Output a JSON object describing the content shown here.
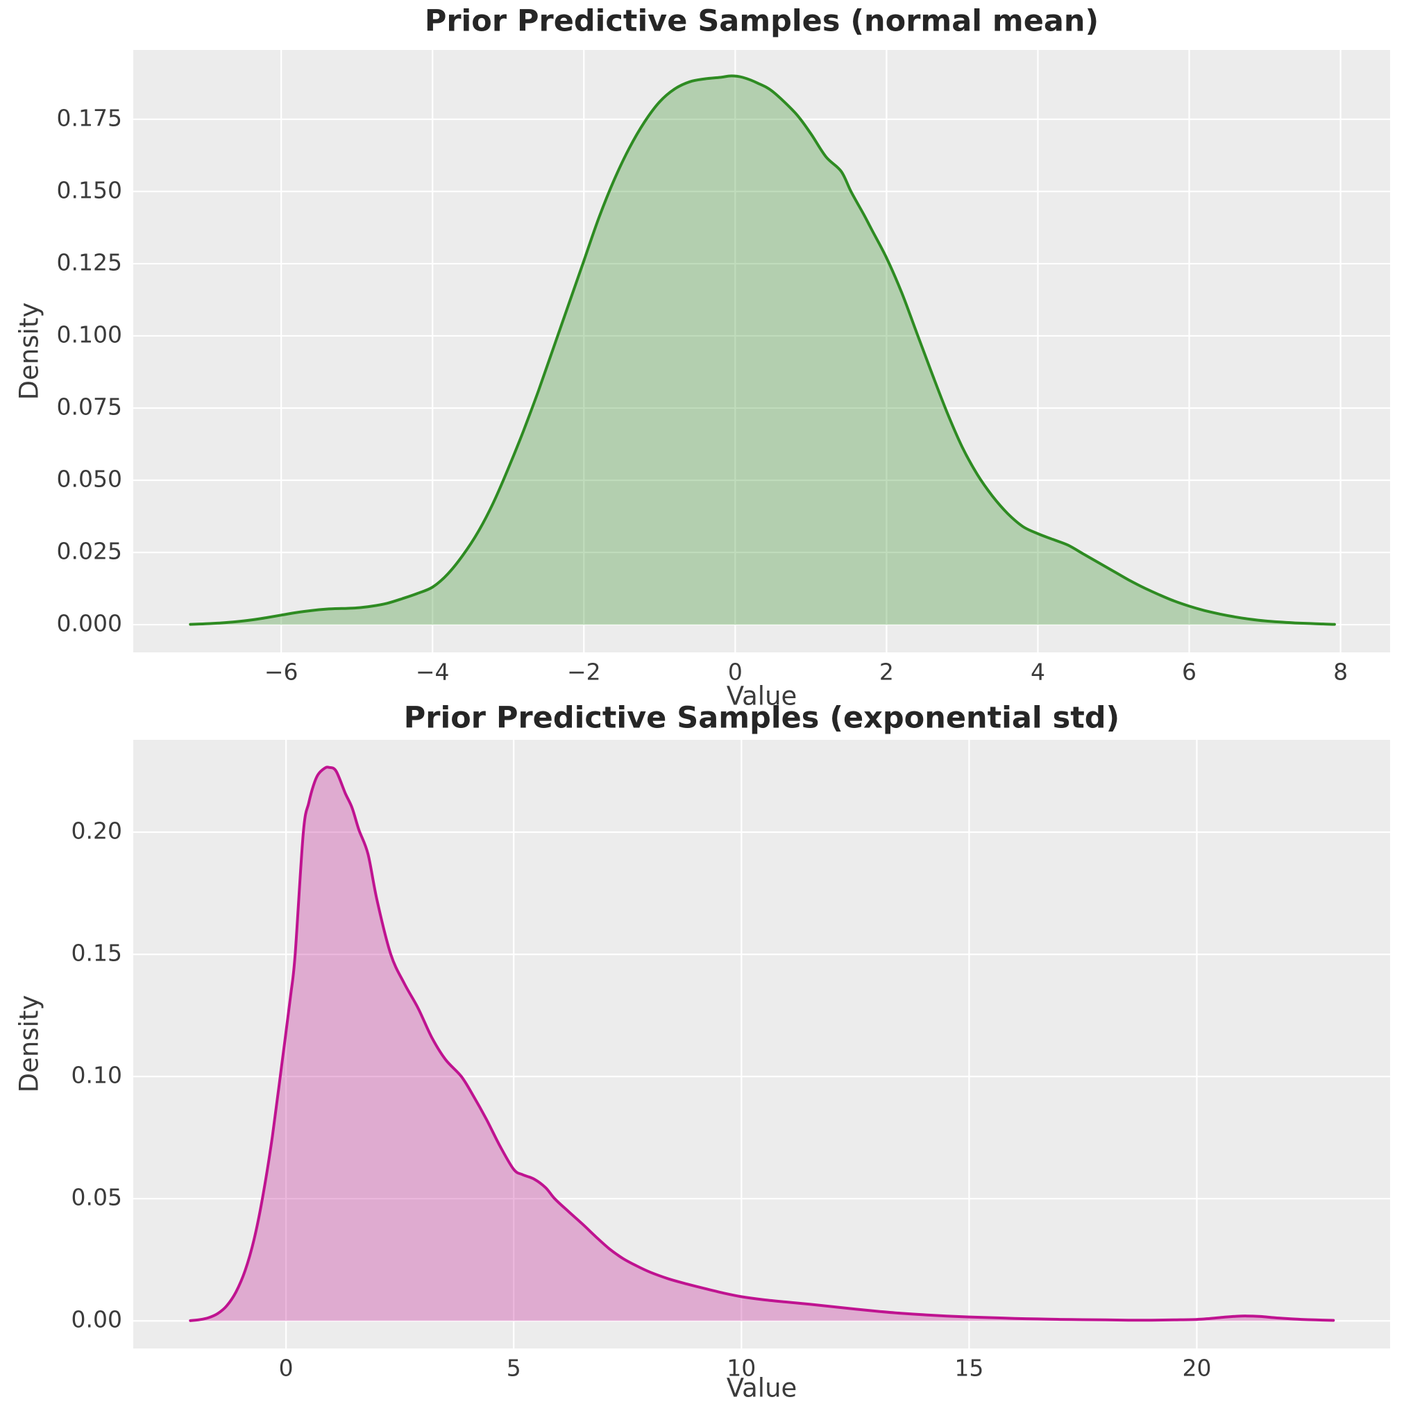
{
  "figure": {
    "background": "#ffffff",
    "plot_background": "#ececec",
    "grid_color": "#ffffff",
    "tick_color": "#3b3b3b",
    "label_color": "#3b3b3b",
    "title_color": "#262626"
  },
  "chart_data": [
    {
      "type": "area",
      "kind": "kde-density",
      "title": "Prior Predictive Samples (normal mean)",
      "xlabel": "Value",
      "ylabel": "Density",
      "legend": null,
      "grid": true,
      "line_color": "#2e8b22",
      "fill_color": "rgba(46,139,34,0.30)",
      "xlim": [
        -7.955,
        8.655
      ],
      "ylim": [
        -0.0096,
        0.199
      ],
      "x_ticks": [
        {
          "v": -6,
          "label": "−6"
        },
        {
          "v": -4,
          "label": "−4"
        },
        {
          "v": -2,
          "label": "−2"
        },
        {
          "v": 0,
          "label": "0"
        },
        {
          "v": 2,
          "label": "2"
        },
        {
          "v": 4,
          "label": "4"
        },
        {
          "v": 6,
          "label": "6"
        },
        {
          "v": 8,
          "label": "8"
        }
      ],
      "y_ticks": [
        {
          "v": 0.0,
          "label": "0.000"
        },
        {
          "v": 0.025,
          "label": "0.025"
        },
        {
          "v": 0.05,
          "label": "0.050"
        },
        {
          "v": 0.075,
          "label": "0.075"
        },
        {
          "v": 0.1,
          "label": "0.100"
        },
        {
          "v": 0.125,
          "label": "0.125"
        },
        {
          "v": 0.15,
          "label": "0.150"
        },
        {
          "v": 0.175,
          "label": "0.175"
        }
      ],
      "points": [
        [
          -7.2,
          0.0001
        ],
        [
          -7.0,
          0.0003
        ],
        [
          -6.8,
          0.0006
        ],
        [
          -6.6,
          0.001
        ],
        [
          -6.4,
          0.0016
        ],
        [
          -6.2,
          0.0024
        ],
        [
          -6.0,
          0.0033
        ],
        [
          -5.8,
          0.0042
        ],
        [
          -5.6,
          0.0049
        ],
        [
          -5.4,
          0.0054
        ],
        [
          -5.2,
          0.0056
        ],
        [
          -5.0,
          0.0058
        ],
        [
          -4.8,
          0.0064
        ],
        [
          -4.6,
          0.0074
        ],
        [
          -4.4,
          0.009
        ],
        [
          -4.2,
          0.0108
        ],
        [
          -4.0,
          0.013
        ],
        [
          -3.8,
          0.0175
        ],
        [
          -3.6,
          0.024
        ],
        [
          -3.4,
          0.032
        ],
        [
          -3.2,
          0.042
        ],
        [
          -3.0,
          0.054
        ],
        [
          -2.8,
          0.067
        ],
        [
          -2.6,
          0.081
        ],
        [
          -2.4,
          0.096
        ],
        [
          -2.2,
          0.111
        ],
        [
          -2.0,
          0.126
        ],
        [
          -1.8,
          0.141
        ],
        [
          -1.6,
          0.154
        ],
        [
          -1.4,
          0.165
        ],
        [
          -1.2,
          0.174
        ],
        [
          -1.0,
          0.181
        ],
        [
          -0.8,
          0.1855
        ],
        [
          -0.6,
          0.188
        ],
        [
          -0.4,
          0.189
        ],
        [
          -0.2,
          0.1895
        ],
        [
          -0.05,
          0.19
        ],
        [
          0.1,
          0.1895
        ],
        [
          0.3,
          0.1875
        ],
        [
          0.5,
          0.1845
        ],
        [
          0.8,
          0.177
        ],
        [
          1.0,
          0.17
        ],
        [
          1.2,
          0.162
        ],
        [
          1.4,
          0.157
        ],
        [
          1.53,
          0.15
        ],
        [
          1.7,
          0.142
        ],
        [
          1.8,
          0.137
        ],
        [
          2.0,
          0.127
        ],
        [
          2.2,
          0.115
        ],
        [
          2.4,
          0.101
        ],
        [
          2.6,
          0.087
        ],
        [
          2.8,
          0.0735
        ],
        [
          3.0,
          0.0615
        ],
        [
          3.2,
          0.052
        ],
        [
          3.4,
          0.0445
        ],
        [
          3.6,
          0.0385
        ],
        [
          3.8,
          0.034
        ],
        [
          4.0,
          0.0315
        ],
        [
          4.2,
          0.0295
        ],
        [
          4.4,
          0.0275
        ],
        [
          4.6,
          0.0245
        ],
        [
          4.8,
          0.0215
        ],
        [
          5.0,
          0.0185
        ],
        [
          5.2,
          0.0155
        ],
        [
          5.4,
          0.0128
        ],
        [
          5.6,
          0.0104
        ],
        [
          5.8,
          0.0082
        ],
        [
          6.0,
          0.0064
        ],
        [
          6.2,
          0.0049
        ],
        [
          6.4,
          0.0037
        ],
        [
          6.6,
          0.0027
        ],
        [
          6.8,
          0.0019
        ],
        [
          7.0,
          0.0013
        ],
        [
          7.2,
          0.0009
        ],
        [
          7.4,
          0.0006
        ],
        [
          7.6,
          0.0004
        ],
        [
          7.8,
          0.0002
        ],
        [
          7.92,
          0.0001
        ]
      ]
    },
    {
      "type": "area",
      "kind": "kde-density",
      "title": "Prior Predictive Samples (exponential std)",
      "xlabel": "Value",
      "ylabel": "Density",
      "legend": null,
      "grid": true,
      "line_color": "#bf1390",
      "fill_color": "rgba(191,19,144,0.30)",
      "xlim": [
        -3.355,
        24.245
      ],
      "ylim": [
        -0.0113,
        0.2378
      ],
      "x_ticks": [
        {
          "v": 0,
          "label": "0"
        },
        {
          "v": 5,
          "label": "5"
        },
        {
          "v": 10,
          "label": "10"
        },
        {
          "v": 15,
          "label": "15"
        },
        {
          "v": 20,
          "label": "20"
        }
      ],
      "y_ticks": [
        {
          "v": 0.0,
          "label": "0.00"
        },
        {
          "v": 0.05,
          "label": "0.05"
        },
        {
          "v": 0.1,
          "label": "0.10"
        },
        {
          "v": 0.15,
          "label": "0.15"
        },
        {
          "v": 0.2,
          "label": "0.20"
        }
      ],
      "points": [
        [
          -2.1,
          0.0001
        ],
        [
          -1.9,
          0.0005
        ],
        [
          -1.7,
          0.0013
        ],
        [
          -1.5,
          0.003
        ],
        [
          -1.3,
          0.0062
        ],
        [
          -1.1,
          0.0118
        ],
        [
          -0.9,
          0.0205
        ],
        [
          -0.7,
          0.0335
        ],
        [
          -0.5,
          0.052
        ],
        [
          -0.3,
          0.0755
        ],
        [
          -0.1,
          0.104
        ],
        [
          0.1,
          0.133
        ],
        [
          0.2,
          0.15
        ],
        [
          0.38,
          0.2
        ],
        [
          0.5,
          0.212
        ],
        [
          0.6,
          0.219
        ],
        [
          0.7,
          0.2235
        ],
        [
          0.85,
          0.2262
        ],
        [
          0.95,
          0.2265
        ],
        [
          1.1,
          0.225
        ],
        [
          1.3,
          0.216
        ],
        [
          1.45,
          0.21
        ],
        [
          1.6,
          0.201
        ],
        [
          1.8,
          0.191
        ],
        [
          2.0,
          0.172
        ],
        [
          2.3,
          0.15
        ],
        [
          2.6,
          0.138
        ],
        [
          2.9,
          0.128
        ],
        [
          3.2,
          0.116
        ],
        [
          3.5,
          0.107
        ],
        [
          3.85,
          0.1
        ],
        [
          4.1,
          0.0925
        ],
        [
          4.4,
          0.0825
        ],
        [
          4.7,
          0.0715
        ],
        [
          5.0,
          0.062
        ],
        [
          5.2,
          0.0598
        ],
        [
          5.45,
          0.058
        ],
        [
          5.7,
          0.0545
        ],
        [
          5.9,
          0.05
        ],
        [
          6.2,
          0.0448
        ],
        [
          6.5,
          0.0398
        ],
        [
          6.8,
          0.0345
        ],
        [
          7.1,
          0.0295
        ],
        [
          7.4,
          0.0255
        ],
        [
          7.7,
          0.0225
        ],
        [
          8.0,
          0.0199
        ],
        [
          8.4,
          0.0172
        ],
        [
          8.8,
          0.0151
        ],
        [
          9.2,
          0.0132
        ],
        [
          9.6,
          0.0114
        ],
        [
          10.0,
          0.0099
        ],
        [
          10.5,
          0.0086
        ],
        [
          11.0,
          0.0077
        ],
        [
          11.5,
          0.0068
        ],
        [
          12.0,
          0.0058
        ],
        [
          12.5,
          0.0048
        ],
        [
          13.0,
          0.0039
        ],
        [
          13.5,
          0.0031
        ],
        [
          14.0,
          0.0025
        ],
        [
          14.5,
          0.002
        ],
        [
          15.0,
          0.0016
        ],
        [
          15.5,
          0.0013
        ],
        [
          16.0,
          0.001
        ],
        [
          16.5,
          0.0008
        ],
        [
          17.0,
          0.0006
        ],
        [
          17.5,
          0.0005
        ],
        [
          18.0,
          0.0004
        ],
        [
          18.5,
          0.0003
        ],
        [
          19.0,
          0.0003
        ],
        [
          19.5,
          0.0004
        ],
        [
          20.0,
          0.0006
        ],
        [
          20.3,
          0.001
        ],
        [
          20.6,
          0.0015
        ],
        [
          20.9,
          0.0019
        ],
        [
          21.1,
          0.002
        ],
        [
          21.4,
          0.0018
        ],
        [
          21.7,
          0.0013
        ],
        [
          22.0,
          0.0009
        ],
        [
          22.3,
          0.0006
        ],
        [
          22.6,
          0.0004
        ],
        [
          23.0,
          0.0002
        ]
      ]
    }
  ]
}
